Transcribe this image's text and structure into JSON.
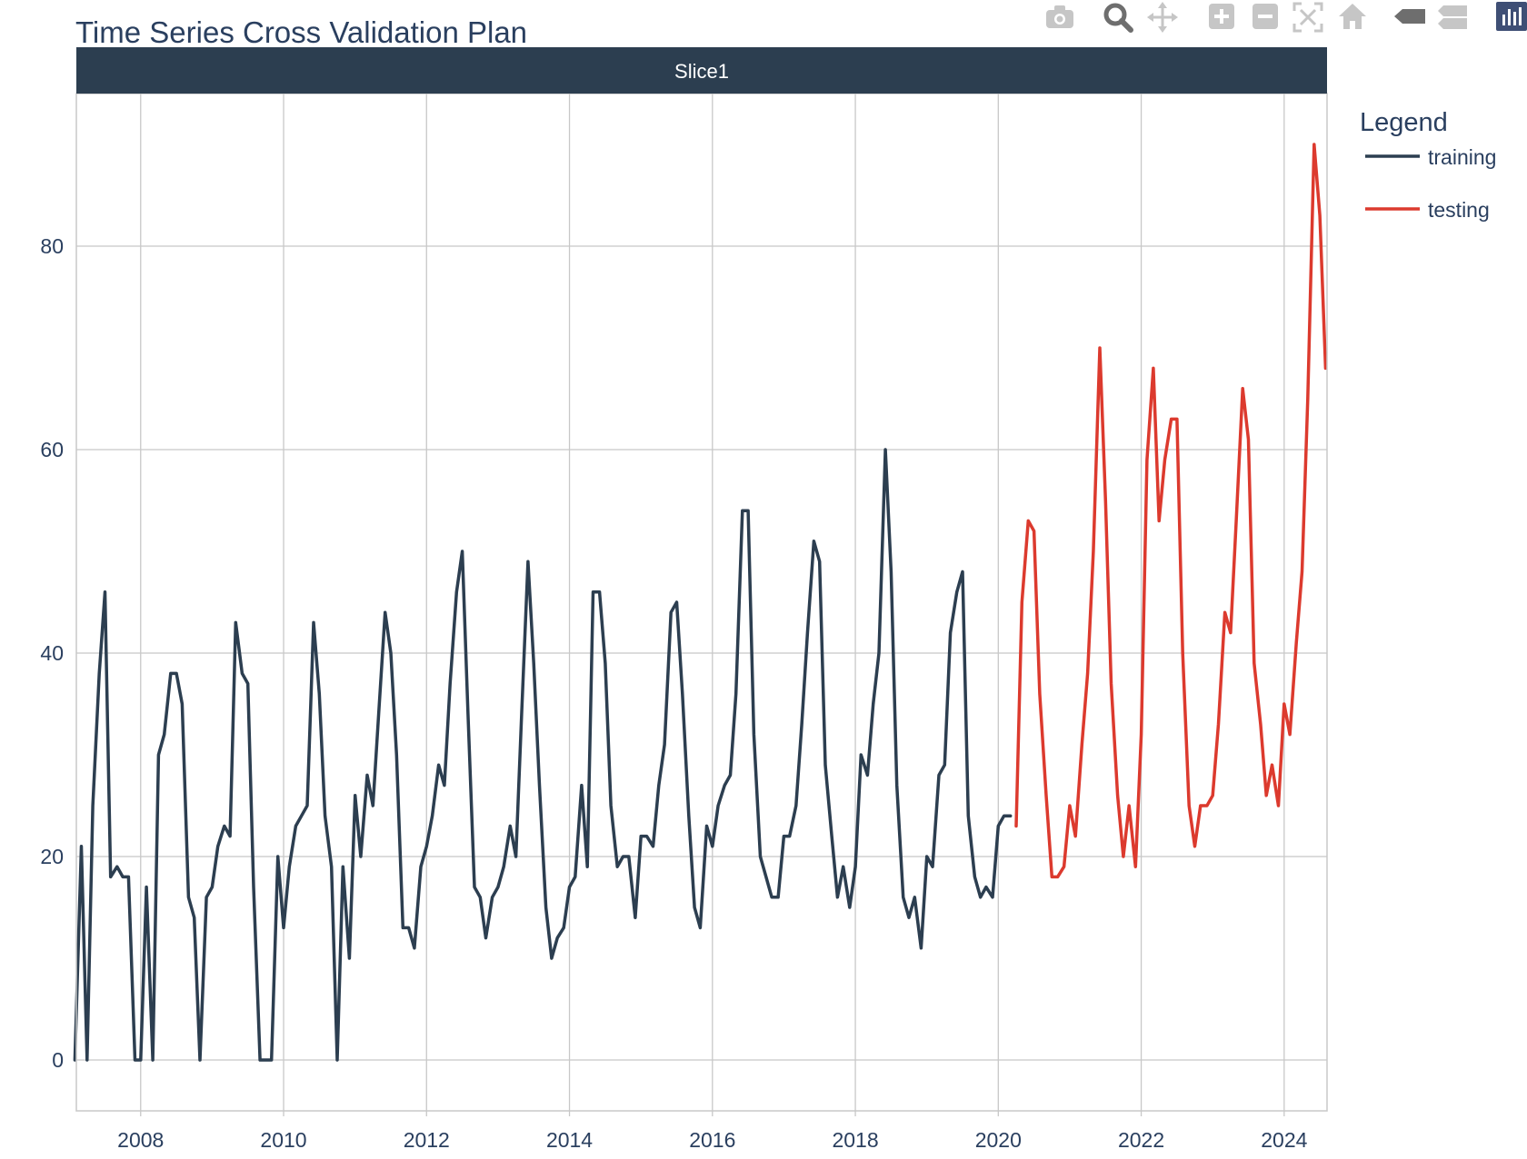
{
  "chart_data": {
    "type": "line",
    "title": "Time Series Cross Validation Plan",
    "facet_label": "Slice1",
    "legend_title": "Legend",
    "legend_position": "right",
    "xlim": [
      2007.1,
      2024.6
    ],
    "ylim": [
      -5,
      95
    ],
    "x_ticks": [
      2008,
      2010,
      2012,
      2014,
      2016,
      2018,
      2020,
      2022,
      2024
    ],
    "y_ticks": [
      0,
      20,
      40,
      60,
      80
    ],
    "grid": true,
    "colors": {
      "training": "#2c3e50",
      "testing": "#dc3a2e",
      "strip": "#2c3e50",
      "axis_text": "#2a3f5f",
      "grid": "#c8c8c8"
    },
    "series": [
      {
        "name": "training",
        "x": [
          2007.08,
          2007.17,
          2007.25,
          2007.33,
          2007.42,
          2007.5,
          2007.58,
          2007.67,
          2007.75,
          2007.83,
          2007.92,
          2008.0,
          2008.08,
          2008.17,
          2008.25,
          2008.33,
          2008.42,
          2008.5,
          2008.58,
          2008.67,
          2008.75,
          2008.83,
          2008.92,
          2009.0,
          2009.08,
          2009.17,
          2009.25,
          2009.33,
          2009.42,
          2009.5,
          2009.58,
          2009.67,
          2009.75,
          2009.83,
          2009.92,
          2010.0,
          2010.08,
          2010.17,
          2010.25,
          2010.33,
          2010.42,
          2010.5,
          2010.58,
          2010.67,
          2010.75,
          2010.83,
          2010.92,
          2011.0,
          2011.08,
          2011.17,
          2011.25,
          2011.33,
          2011.42,
          2011.5,
          2011.58,
          2011.67,
          2011.75,
          2011.83,
          2011.92,
          2012.0,
          2012.08,
          2012.17,
          2012.25,
          2012.33,
          2012.42,
          2012.5,
          2012.58,
          2012.67,
          2012.75,
          2012.83,
          2012.92,
          2013.0,
          2013.08,
          2013.17,
          2013.25,
          2013.33,
          2013.42,
          2013.5,
          2013.58,
          2013.67,
          2013.75,
          2013.83,
          2013.92,
          2014.0,
          2014.08,
          2014.17,
          2014.25,
          2014.33,
          2014.42,
          2014.5,
          2014.58,
          2014.67,
          2014.75,
          2014.83,
          2014.92,
          2015.0,
          2015.08,
          2015.17,
          2015.25,
          2015.33,
          2015.42,
          2015.5,
          2015.58,
          2015.67,
          2015.75,
          2015.83,
          2015.92,
          2016.0,
          2016.08,
          2016.17,
          2016.25,
          2016.33,
          2016.42,
          2016.5,
          2016.58,
          2016.67,
          2016.75,
          2016.83,
          2016.92,
          2017.0,
          2017.08,
          2017.17,
          2017.25,
          2017.33,
          2017.42,
          2017.5,
          2017.58,
          2017.67,
          2017.75,
          2017.83,
          2017.92,
          2018.0,
          2018.08,
          2018.17,
          2018.25,
          2018.33,
          2018.42,
          2018.5,
          2018.58,
          2018.67,
          2018.75,
          2018.83,
          2018.92,
          2019.0,
          2019.08,
          2019.17,
          2019.25,
          2019.33,
          2019.42,
          2019.5,
          2019.58,
          2019.67,
          2019.75,
          2019.83,
          2019.92,
          2020.0,
          2020.08,
          2020.17
        ],
        "y": [
          0,
          21,
          0,
          25,
          38,
          46,
          18,
          19,
          18,
          18,
          0,
          0,
          17,
          0,
          30,
          32,
          38,
          38,
          35,
          16,
          14,
          0,
          16,
          17,
          21,
          23,
          22,
          43,
          38,
          37,
          17,
          0,
          0,
          0,
          20,
          13,
          19,
          23,
          24,
          25,
          43,
          36,
          24,
          19,
          0,
          19,
          10,
          26,
          20,
          28,
          25,
          34,
          44,
          40,
          30,
          13,
          13,
          11,
          19,
          21,
          24,
          29,
          27,
          37,
          46,
          50,
          34,
          17,
          16,
          12,
          16,
          17,
          19,
          23,
          20,
          34,
          49,
          39,
          27,
          15,
          10,
          12,
          13,
          17,
          18,
          27,
          19,
          46,
          46,
          39,
          25,
          19,
          20,
          20,
          14,
          22,
          22,
          21,
          27,
          31,
          44,
          45,
          36,
          24,
          15,
          13,
          23,
          21,
          25,
          27,
          28,
          36,
          54,
          54,
          32,
          20,
          18,
          16,
          16,
          22,
          22,
          25,
          33,
          42,
          51,
          49,
          29,
          22,
          16,
          19,
          15,
          19,
          30,
          28,
          35,
          40,
          60,
          48,
          27,
          16,
          14,
          16,
          11,
          20,
          19,
          28,
          29,
          42,
          46,
          48,
          24,
          18,
          16,
          17,
          16,
          23,
          24,
          24
        ]
      },
      {
        "name": "testing",
        "x": [
          2020.25,
          2020.33,
          2020.42,
          2020.5,
          2020.58,
          2020.67,
          2020.75,
          2020.83,
          2020.92,
          2021.0,
          2021.08,
          2021.17,
          2021.25,
          2021.33,
          2021.42,
          2021.5,
          2021.58,
          2021.67,
          2021.75,
          2021.83,
          2021.92,
          2022.0,
          2022.08,
          2022.17,
          2022.25,
          2022.33,
          2022.42,
          2022.5,
          2022.58,
          2022.67,
          2022.75,
          2022.83,
          2022.92,
          2023.0,
          2023.08,
          2023.17,
          2023.25,
          2023.33,
          2023.42,
          2023.5,
          2023.58,
          2023.67,
          2023.75,
          2023.83,
          2023.92,
          2024.0,
          2024.08,
          2024.17,
          2024.25,
          2024.33,
          2024.42,
          2024.5,
          2024.58
        ],
        "y": [
          23,
          45,
          53,
          52,
          36,
          26,
          18,
          18,
          19,
          25,
          22,
          31,
          38,
          50,
          70,
          55,
          37,
          26,
          20,
          25,
          19,
          32,
          59,
          68,
          53,
          59,
          63,
          63,
          40,
          25,
          21,
          25,
          25,
          26,
          33,
          44,
          42,
          53,
          66,
          61,
          39,
          33,
          26,
          29,
          25,
          35,
          32,
          41,
          48,
          65,
          90,
          83,
          68
        ]
      }
    ]
  },
  "modebar": {
    "icons": [
      "camera-icon",
      "zoom-icon",
      "pan-icon",
      "zoom-in-icon",
      "zoom-out-icon",
      "autoscale-icon",
      "home-icon",
      "spike-lines-icon",
      "hover-compare-icon",
      "plotly-logo-icon"
    ]
  }
}
